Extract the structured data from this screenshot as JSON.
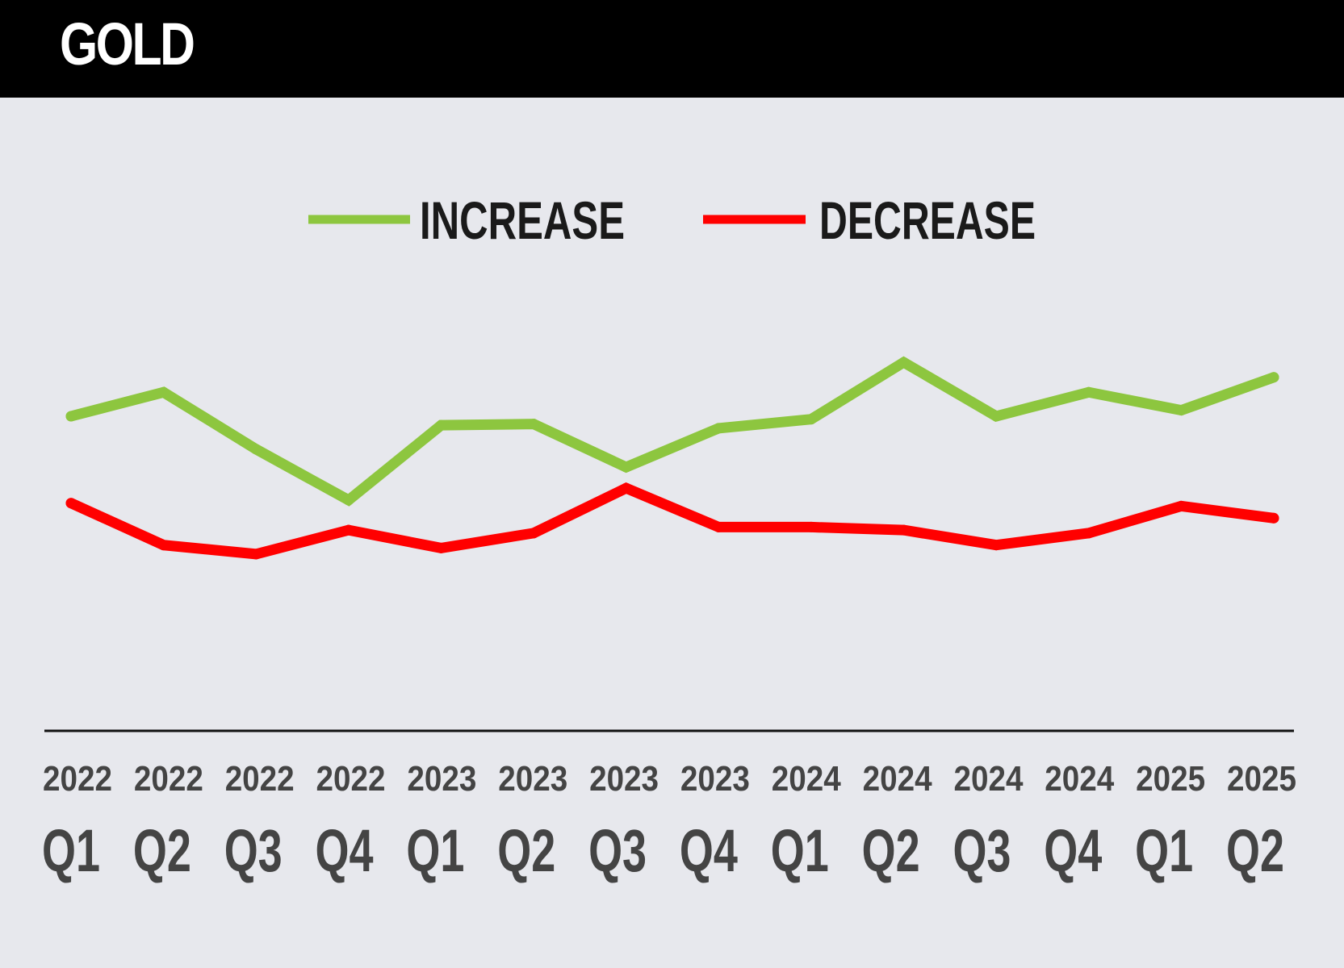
{
  "header": {
    "title": "GOLD"
  },
  "chart_data": {
    "type": "line",
    "title": "GOLD",
    "categories": [
      "2022 Q1",
      "2022 Q2",
      "2022 Q3",
      "2022 Q4",
      "2023 Q1",
      "2023 Q2",
      "2023 Q3",
      "2023 Q4",
      "2024 Q1",
      "2024 Q2",
      "2024 Q3",
      "2024 Q4",
      "2025 Q1",
      "2025 Q2"
    ],
    "years": [
      "2022",
      "2022",
      "2022",
      "2022",
      "2023",
      "2023",
      "2023",
      "2023",
      "2024",
      "2024",
      "2024",
      "2024",
      "2025",
      "2025"
    ],
    "quarters": [
      "Q1",
      "Q2",
      "Q3",
      "Q4",
      "Q1",
      "Q2",
      "Q3",
      "Q4",
      "Q1",
      "Q2",
      "Q3",
      "Q4",
      "Q1",
      "Q2"
    ],
    "ylim": [
      0,
      70
    ],
    "grid": false,
    "legend_position": "top-center",
    "series": [
      {
        "name": "INCREASE",
        "color": "#8dc63f",
        "values": [
          49,
          53,
          43.5,
          35,
          47.5,
          47.7,
          40.5,
          47,
          48.5,
          58,
          49,
          53,
          50,
          55.5
        ]
      },
      {
        "name": "DECREASE",
        "color": "#ff0000",
        "values": [
          34.5,
          27.5,
          26,
          30,
          27,
          29.5,
          37,
          30.5,
          30.5,
          30,
          27.5,
          29.5,
          34,
          32
        ]
      }
    ],
    "colors": {
      "axis": "#111111",
      "tick_text": "#444444",
      "legend_text": "#1a1a1a",
      "background": "#e7e8ed",
      "header_background": "#000000",
      "header_text": "#ffffff"
    }
  }
}
